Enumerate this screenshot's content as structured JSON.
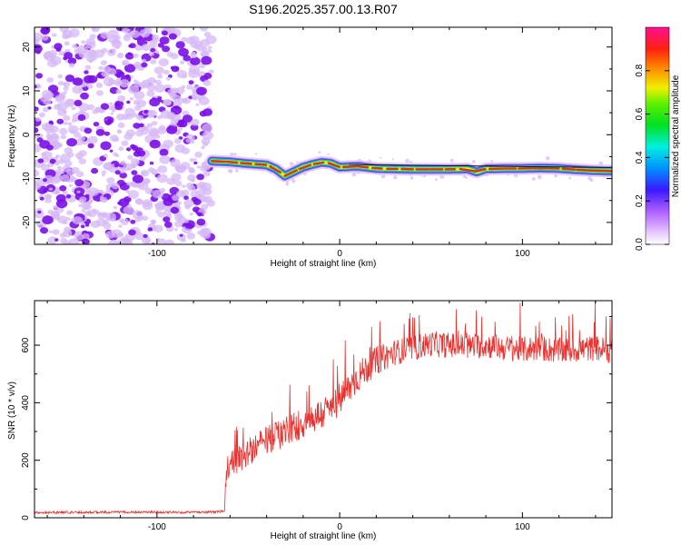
{
  "title": "S196.2025.357.00.13.R07",
  "colors": {
    "snr_line": "#e8322f",
    "track": "#d83038",
    "noise_dark": "#7a10e8",
    "noise_light": "#d6b8f6"
  },
  "chart_data": [
    {
      "type": "heatmap",
      "name": "spectrogram",
      "xlabel": "Height of straight line (km)",
      "ylabel": "Frequency (Hz)",
      "xlim": [
        -167,
        149
      ],
      "ylim": [
        -25,
        24.5
      ],
      "xticks": [
        -100,
        0,
        100
      ],
      "xtick_labels": [
        "-100",
        "0",
        "100"
      ],
      "yticks": [
        -20,
        -10,
        0,
        10,
        20
      ],
      "ytick_labels": [
        "-20",
        "-10",
        "0",
        "10",
        "20"
      ],
      "noise_x_range": [
        -167,
        -70
      ],
      "track": {
        "x": [
          -70,
          -60,
          -50,
          -40,
          -35,
          -30,
          -25,
          -20,
          -15,
          -10,
          -5,
          0,
          10,
          20,
          30,
          40,
          50,
          60,
          70,
          75,
          80,
          90,
          100,
          110,
          120,
          130,
          140,
          149
        ],
        "y": [
          -6,
          -6.2,
          -6.6,
          -6.9,
          -7.8,
          -9.4,
          -8.4,
          -7.4,
          -6.8,
          -6.3,
          -6.5,
          -7.4,
          -7.2,
          -7.7,
          -7.8,
          -7.9,
          -7.9,
          -7.9,
          -7.8,
          -8.5,
          -7.8,
          -7.7,
          -7.7,
          -7.6,
          -7.7,
          -8.0,
          -8.2,
          -8.3
        ]
      },
      "colorbar": {
        "label": "Normalized spectral amplitude",
        "ticks": [
          0.0,
          0.2,
          0.4,
          0.6,
          0.8
        ],
        "tick_labels": [
          "0.0",
          "0.2",
          "0.4",
          "0.6",
          "0.8"
        ],
        "range": [
          0,
          1
        ]
      }
    },
    {
      "type": "line",
      "name": "snr",
      "xlabel": "Height of straight line (km)",
      "ylabel": "SNR (10 * v/v)",
      "xlim": [
        -167,
        149
      ],
      "ylim": [
        0,
        755
      ],
      "xticks": [
        -100,
        0,
        100
      ],
      "xtick_labels": [
        "-100",
        "0",
        "100"
      ],
      "yticks": [
        0,
        200,
        400,
        600
      ],
      "ytick_labels": [
        "0",
        "200",
        "400",
        "600"
      ],
      "series": [
        {
          "name": "SNR",
          "x": [
            -167,
            -150,
            -130,
            -110,
            -90,
            -70,
            -63,
            -62,
            -55,
            -45,
            -35,
            -25,
            -20,
            -15,
            -10,
            -5,
            0,
            5,
            10,
            15,
            20,
            25,
            30,
            40,
            50,
            60,
            70,
            80,
            90,
            100,
            110,
            120,
            130,
            140,
            149
          ],
          "y": [
            18,
            19,
            19,
            20,
            19,
            20,
            22,
            170,
            205,
            250,
            285,
            315,
            330,
            345,
            360,
            380,
            410,
            450,
            490,
            520,
            545,
            560,
            575,
            590,
            605,
            600,
            595,
            600,
            590,
            585,
            590,
            580,
            585,
            590,
            580
          ],
          "noise_amplitude": {
            "x": [
              -167,
              -70,
              -63,
              -62,
              -30,
              0,
              30,
              149
            ],
            "y": [
              4,
              4,
              5,
              45,
              55,
              60,
              45,
              45
            ]
          }
        }
      ]
    }
  ]
}
